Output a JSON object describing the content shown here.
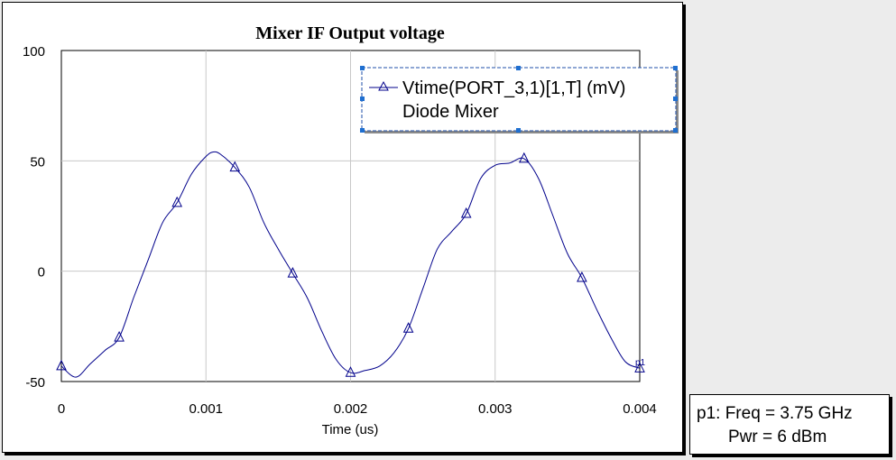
{
  "chart_data": {
    "type": "line",
    "title": "Mixer IF Output voltage",
    "xlabel": "Time (us)",
    "ylabel": "",
    "xlim": [
      0,
      0.004
    ],
    "ylim": [
      -50,
      100
    ],
    "xticks": [
      0,
      0.001,
      0.002,
      0.003,
      0.004
    ],
    "xtick_labels": [
      "0",
      "0.001",
      "0.002",
      "0.003",
      "0.004"
    ],
    "yticks": [
      -50,
      0,
      50,
      100
    ],
    "ytick_labels": [
      "-50",
      "0",
      "50",
      "100"
    ],
    "grid": true,
    "legend_position": "top-right",
    "series": [
      {
        "name": "Vtime(PORT_3,1)[1,T] (mV)",
        "name_line2": "Diode Mixer",
        "color": "#00008b",
        "marker": "triangle",
        "x": [
          0,
          0.0001,
          0.0002,
          0.0003,
          0.0004,
          0.0005,
          0.0006,
          0.0007,
          0.0008,
          0.0009,
          0.001,
          0.00105,
          0.0011,
          0.0012,
          0.0013,
          0.0014,
          0.0015,
          0.0016,
          0.0017,
          0.0018,
          0.0019,
          0.002,
          0.0021,
          0.0022,
          0.0023,
          0.0024,
          0.0025,
          0.0026,
          0.0027,
          0.0028,
          0.0029,
          0.003,
          0.0031,
          0.0032,
          0.0033,
          0.0034,
          0.0035,
          0.0036,
          0.0037,
          0.0038,
          0.0039,
          0.004
        ],
        "y": [
          -43,
          -48,
          -42,
          -36,
          -30,
          -12,
          5,
          22,
          31,
          44,
          52,
          54,
          53,
          47,
          38,
          22,
          10,
          -1,
          -12,
          -27,
          -40,
          -46,
          -45,
          -43,
          -37,
          -26,
          -8,
          10,
          18,
          26,
          42,
          48,
          49,
          51,
          42,
          25,
          8,
          -3,
          -17,
          -30,
          -41,
          -44
        ],
        "marker_x": [
          0,
          0.0004,
          0.0008,
          0.0012,
          0.0016,
          0.002,
          0.0024,
          0.0028,
          0.0032,
          0.0036,
          0.004
        ],
        "marker_y": [
          -43,
          -30,
          31,
          47,
          -1,
          -46,
          -26,
          26,
          51,
          -3,
          -44
        ]
      }
    ],
    "annotations": [
      "p1"
    ]
  },
  "marker_readout": {
    "line1": "p1: Freq = 3.75 GHz",
    "line2": "Pwr = 6 dBm"
  }
}
